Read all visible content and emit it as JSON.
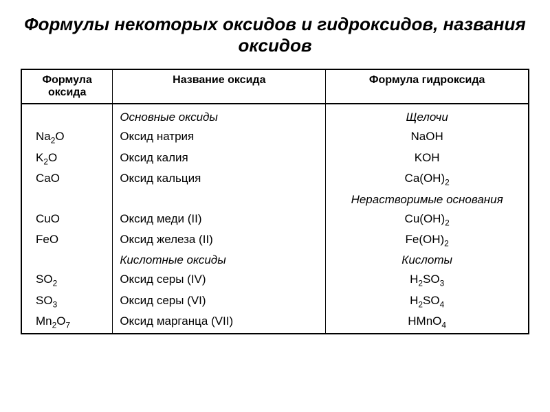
{
  "title": "Формулы некоторых оксидов и гидроксидов, названия оксидов",
  "headers": {
    "col1": "Формула оксида",
    "col2": "Название оксида",
    "col3": "Формула гидроксида"
  },
  "sections": {
    "basic_oxides": "Основные оксиды",
    "alkalis": "Щелочи",
    "insoluble_bases": "Нерастворимые основания",
    "acidic_oxides": "Кислотные оксиды",
    "acids": "Кислоты"
  },
  "rows": {
    "r1": {
      "formula": "Na₂O",
      "name": "Оксид натрия",
      "hydroxide": "NaOH"
    },
    "r2": {
      "formula": "K₂O",
      "name": "Оксид калия",
      "hydroxide": "KOH"
    },
    "r3": {
      "formula": "CaO",
      "name": "Оксид кальция",
      "hydroxide": "Ca(OH)₂"
    },
    "r4": {
      "formula": "CuO",
      "name": "Оксид меди (II)",
      "hydroxide": "Cu(OH)₂"
    },
    "r5": {
      "formula": "FeO",
      "name": "Оксид железа (II)",
      "hydroxide": "Fe(OH)₂"
    },
    "r6": {
      "formula": "SO₂",
      "name": "Оксид серы (IV)",
      "hydroxide": "H₂SO₃"
    },
    "r7": {
      "formula": "SO₃",
      "name": "Оксид серы (VI)",
      "hydroxide": "H₂SO₄"
    },
    "r8": {
      "formula": "Mn₂O₇",
      "name": "Оксид марганца (VII)",
      "hydroxide": "HMnO₄"
    }
  }
}
